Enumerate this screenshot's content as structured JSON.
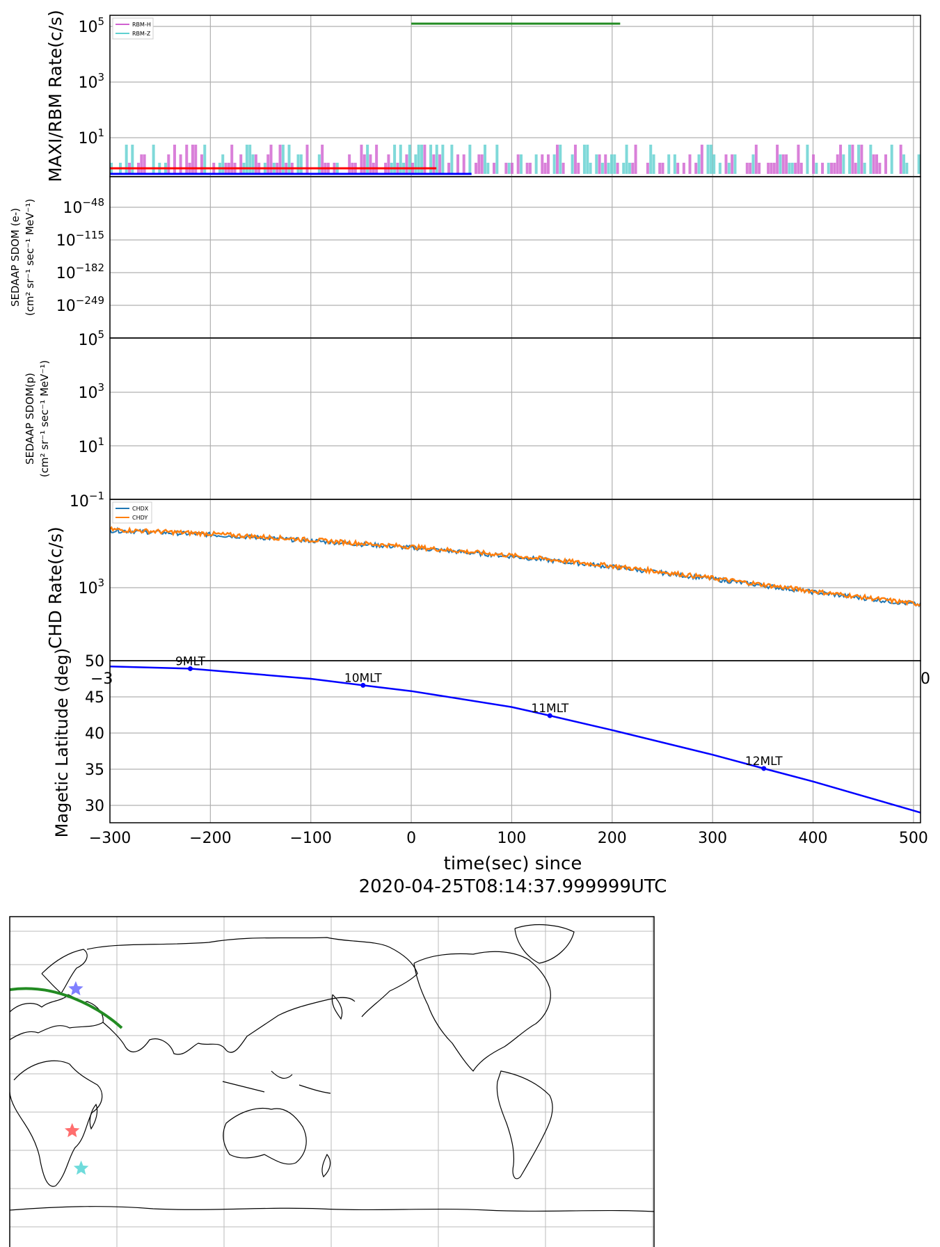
{
  "chart_data": [
    {
      "type": "line",
      "ylabel": "MAXI/RBM Rate(c/s)",
      "scale": "log",
      "yticks": [
        {
          "value": 5,
          "base": "10",
          "exp": "5"
        },
        {
          "value": 3,
          "base": "10",
          "exp": "3"
        },
        {
          "value": 1,
          "base": "10",
          "exp": "1"
        }
      ],
      "legend": {
        "placement": "top-left",
        "entries": [
          {
            "label": "RBM-H",
            "color": "#d060d0"
          },
          {
            "label": "RBM-Z",
            "color": "#5fd0d0"
          }
        ]
      },
      "markers": [
        {
          "color": "#228b22",
          "x": [
            0,
            208
          ],
          "y_log": 5.1
        },
        {
          "color": "#0000ff",
          "x": [
            -300,
            60
          ],
          "y_log": -0.3
        },
        {
          "color": "#ff0000",
          "x": [
            -300,
            25
          ],
          "y_log": -0.1
        }
      ],
      "noise_floor_counts": [
        0,
        1,
        2,
        3
      ]
    },
    {
      "type": "line",
      "ylabel_lines": [
        "SEDAAP SDOM (e-)",
        "(cm² sr⁻¹ sec⁻¹ MeV⁻¹)"
      ],
      "scale": "log",
      "yticks": [
        {
          "value": -48,
          "base": "10",
          "exp": "−48"
        },
        {
          "value": -115,
          "base": "10",
          "exp": "−115"
        },
        {
          "value": -182,
          "base": "10",
          "exp": "−182"
        },
        {
          "value": -249,
          "base": "10",
          "exp": "−249"
        }
      ],
      "series": []
    },
    {
      "type": "line",
      "ylabel_lines": [
        "SEDAAP SDOM(p)",
        "(cm² sr⁻¹ sec⁻¹ MeV⁻¹)"
      ],
      "scale": "log",
      "yticks": [
        {
          "value": 5,
          "base": "10",
          "exp": "5"
        },
        {
          "value": 3,
          "base": "10",
          "exp": "3"
        },
        {
          "value": 1,
          "base": "10",
          "exp": "1"
        },
        {
          "value": -1,
          "base": "10",
          "exp": "−1"
        }
      ],
      "series": []
    },
    {
      "type": "line",
      "ylabel": "CHD Rate(c/s)",
      "scale": "log",
      "yticks": [
        {
          "value": 3,
          "base": "10",
          "exp": "3"
        }
      ],
      "xtick_fragments": [
        "−3",
        "0"
      ],
      "legend": {
        "placement": "top-left",
        "entries": [
          {
            "label": "CHDX",
            "color": "#1f77b4"
          },
          {
            "label": "CHDY",
            "color": "#ff7f0e"
          }
        ]
      },
      "series": [
        {
          "name": "CHDX",
          "color": "#1f77b4",
          "x": [
            -300,
            -200,
            -100,
            0,
            100,
            200,
            300,
            400,
            507
          ],
          "y_log": [
            3.66,
            3.61,
            3.54,
            3.46,
            3.36,
            3.24,
            3.1,
            2.95,
            2.8
          ]
        },
        {
          "name": "CHDY",
          "color": "#ff7f0e",
          "x": [
            -300,
            -200,
            -100,
            0,
            100,
            200,
            300,
            400,
            507
          ],
          "y_log": [
            3.67,
            3.62,
            3.55,
            3.47,
            3.37,
            3.25,
            3.11,
            2.96,
            2.81
          ]
        }
      ]
    },
    {
      "type": "line",
      "ylabel": "Magetic Latitude  (deg)",
      "xlabel": "time(sec) since",
      "xlabel2": "2020-04-25T08:14:37.999999UTC",
      "ylim": [
        28,
        50
      ],
      "xlim": [
        -300,
        507
      ],
      "yticks": [
        "50",
        "45",
        "40",
        "35",
        "30"
      ],
      "xticks": [
        "−300",
        "−200",
        "−100",
        "0",
        "100",
        "200",
        "300",
        "400",
        "500"
      ],
      "series": [
        {
          "color": "#0000ff",
          "x": [
            -300,
            -220,
            -100,
            -48,
            0,
            100,
            138,
            200,
            300,
            351,
            400,
            507
          ],
          "y": [
            49.2,
            48.9,
            47.5,
            46.6,
            45.8,
            43.6,
            42.4,
            40.4,
            37.0,
            35.1,
            33.3,
            29.0
          ]
        }
      ],
      "annotations": [
        {
          "x": -220,
          "y": 48.9,
          "text": "9MLT"
        },
        {
          "x": -48,
          "y": 46.6,
          "text": "10MLT"
        },
        {
          "x": 138,
          "y": 42.4,
          "text": "11MLT"
        },
        {
          "x": 351,
          "y": 35.1,
          "text": "12MLT"
        }
      ]
    }
  ],
  "map": {
    "type": "map",
    "track_color": "#228b22",
    "stars": [
      {
        "name": "blue-star",
        "color": "#6a6aff",
        "lon": 33,
        "lat": 46
      },
      {
        "name": "red-star",
        "color": "#ff5555",
        "lon": 31,
        "lat": -22
      },
      {
        "name": "cyan-star",
        "color": "#55d5d5",
        "lon": 36,
        "lat": -40
      }
    ]
  }
}
